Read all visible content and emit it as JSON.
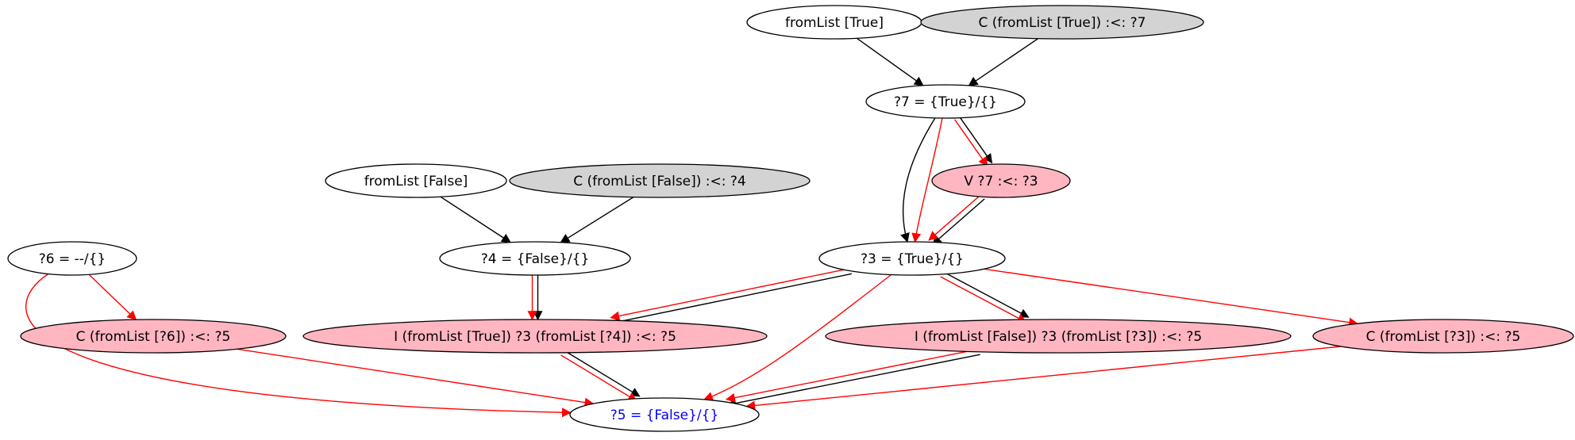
{
  "colors": {
    "plain_fill": "#ffffff",
    "gray_fill": "#d3d3d3",
    "pink_fill": "#ffb6c1",
    "black_edge": "#000000",
    "red_edge": "#ff0000",
    "highlight_text": "#0000ff",
    "default_text": "#000000"
  },
  "nodes": [
    {
      "id": "fromlist-true",
      "label": "fromList [True]",
      "style": "plain"
    },
    {
      "id": "c-fromlist-true-7",
      "label": "C (fromList [True]) :<: ?7",
      "style": "gray"
    },
    {
      "id": "eq-7",
      "label": "?7 = {True}/{}",
      "style": "plain"
    },
    {
      "id": "v-7-3",
      "label": "V ?7 :<: ?3",
      "style": "pink"
    },
    {
      "id": "fromlist-false",
      "label": "fromList [False]",
      "style": "plain"
    },
    {
      "id": "c-fromlist-false-4",
      "label": "C (fromList [False]) :<: ?4",
      "style": "gray"
    },
    {
      "id": "eq-4",
      "label": "?4 = {False}/{}",
      "style": "plain"
    },
    {
      "id": "eq-3",
      "label": "?3 = {True}/{}",
      "style": "plain"
    },
    {
      "id": "eq-6",
      "label": "?6 = --/{}",
      "style": "plain"
    },
    {
      "id": "c-fromlist-6-5",
      "label": "C (fromList [?6]) :<: ?5",
      "style": "pink"
    },
    {
      "id": "i-true-3-4",
      "label": "I (fromList [True]) ?3 (fromList [?4]) :<: ?5",
      "style": "pink"
    },
    {
      "id": "i-false-3-3",
      "label": "I (fromList [False]) ?3 (fromList [?3]) :<: ?5",
      "style": "pink"
    },
    {
      "id": "c-fromlist-3-5",
      "label": "C (fromList [?3]) :<: ?5",
      "style": "pink"
    },
    {
      "id": "eq-5",
      "label": "?5 = {False}/{}",
      "style": "plain",
      "highlight": true
    }
  ],
  "edges": [
    {
      "from": "fromlist-true",
      "to": "eq-7",
      "color": "black"
    },
    {
      "from": "c-fromlist-true-7",
      "to": "eq-7",
      "color": "black"
    },
    {
      "from": "eq-7",
      "to": "v-7-3",
      "color": "black"
    },
    {
      "from": "eq-7",
      "to": "v-7-3",
      "color": "red"
    },
    {
      "from": "eq-7",
      "to": "eq-3",
      "color": "black"
    },
    {
      "from": "eq-7",
      "to": "eq-3",
      "color": "red"
    },
    {
      "from": "v-7-3",
      "to": "eq-3",
      "color": "black"
    },
    {
      "from": "v-7-3",
      "to": "eq-3",
      "color": "red"
    },
    {
      "from": "fromlist-false",
      "to": "eq-4",
      "color": "black"
    },
    {
      "from": "c-fromlist-false-4",
      "to": "eq-4",
      "color": "black"
    },
    {
      "from": "eq-4",
      "to": "i-true-3-4",
      "color": "black"
    },
    {
      "from": "eq-4",
      "to": "i-true-3-4",
      "color": "red"
    },
    {
      "from": "eq-3",
      "to": "i-true-3-4",
      "color": "black"
    },
    {
      "from": "eq-3",
      "to": "i-true-3-4",
      "color": "red"
    },
    {
      "from": "eq-3",
      "to": "i-false-3-3",
      "color": "black"
    },
    {
      "from": "eq-3",
      "to": "i-false-3-3",
      "color": "red"
    },
    {
      "from": "eq-3",
      "to": "c-fromlist-3-5",
      "color": "red"
    },
    {
      "from": "eq-3",
      "to": "eq-5",
      "color": "red"
    },
    {
      "from": "eq-6",
      "to": "c-fromlist-6-5",
      "color": "red"
    },
    {
      "from": "eq-6",
      "to": "eq-5",
      "color": "red"
    },
    {
      "from": "c-fromlist-6-5",
      "to": "eq-5",
      "color": "red"
    },
    {
      "from": "i-true-3-4",
      "to": "eq-5",
      "color": "black"
    },
    {
      "from": "i-true-3-4",
      "to": "eq-5",
      "color": "red"
    },
    {
      "from": "i-false-3-3",
      "to": "eq-5",
      "color": "black"
    },
    {
      "from": "i-false-3-3",
      "to": "eq-5",
      "color": "red"
    },
    {
      "from": "c-fromlist-3-5",
      "to": "eq-5",
      "color": "red"
    }
  ]
}
